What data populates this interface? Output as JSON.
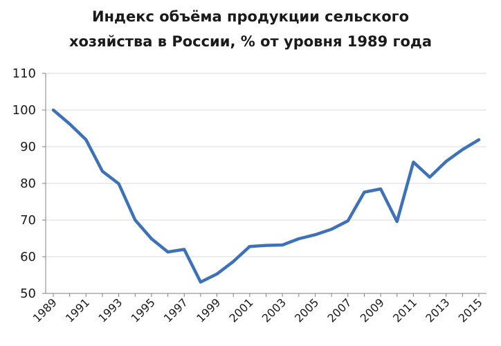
{
  "chart_data": {
    "type": "line",
    "title_lines": [
      "Индекс объёма продукции сельского",
      "хозяйства в России, % от уровня 1989 года"
    ],
    "xlabel": "",
    "ylabel": "",
    "ylim": [
      50,
      110
    ],
    "yticks": [
      50,
      60,
      70,
      80,
      90,
      100,
      110
    ],
    "grid": true,
    "legend": "none",
    "line_color": "#3d72b9",
    "grid_color": "#d9d9d9",
    "x": [
      1989,
      1990,
      1991,
      1992,
      1993,
      1994,
      1995,
      1996,
      1997,
      1998,
      1999,
      2000,
      2001,
      2002,
      2003,
      2004,
      2005,
      2006,
      2007,
      2008,
      2009,
      2010,
      2011,
      2012,
      2013,
      2014,
      2015
    ],
    "xtick_labels": [
      "1989",
      "1991",
      "1993",
      "1995",
      "1997",
      "1999",
      "2001",
      "2003",
      "2005",
      "2007",
      "2009",
      "2011",
      "2013",
      "2015"
    ],
    "series": [
      {
        "values": [
          100,
          96.2,
          91.9,
          83.3,
          79.9,
          70,
          64.9,
          61.3,
          62,
          53.1,
          55.3,
          58.7,
          62.8,
          63.1,
          63.2,
          64.9,
          66,
          67.5,
          69.8,
          77.6,
          78.5,
          69.6,
          85.8,
          81.7,
          86,
          89.2,
          91.9
        ]
      }
    ]
  }
}
